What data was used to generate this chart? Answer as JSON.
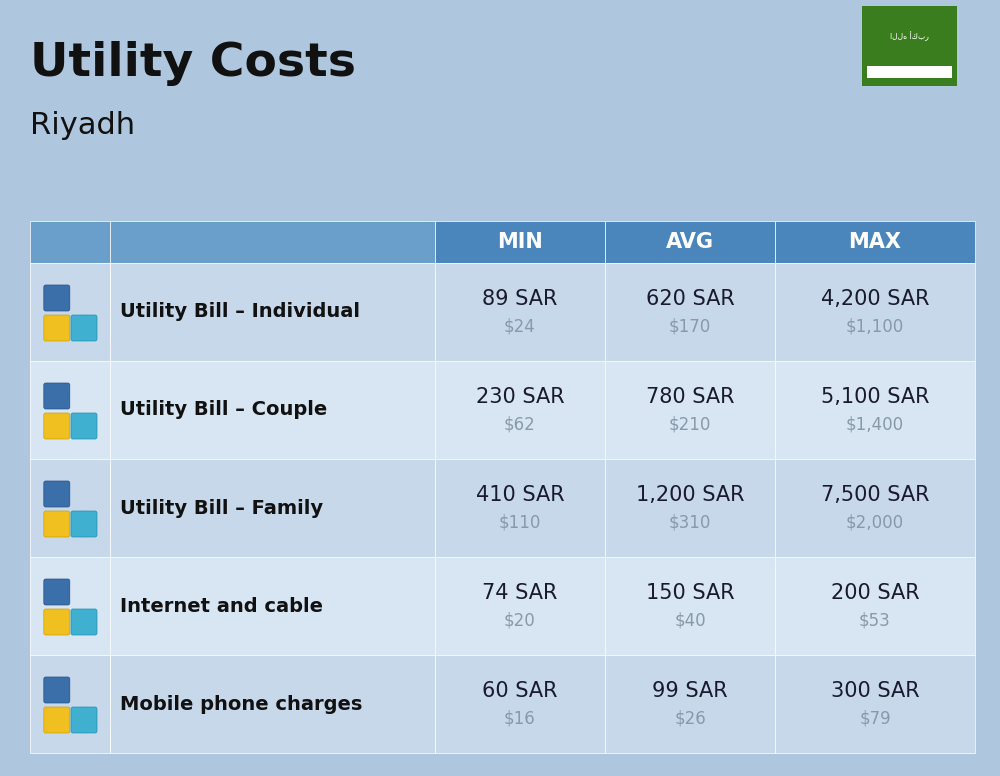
{
  "title": "Utility Costs",
  "subtitle": "Riyadh",
  "bg_color": "#aec6de",
  "header_bg_dark": "#4a86bc",
  "header_bg_light": "#6a9fcc",
  "row_colors": [
    "#c8d8eb",
    "#d8e6f3"
  ],
  "header_text_color": "#ffffff",
  "label_color": "#111111",
  "value_color": "#1a1a2e",
  "usd_color": "#8899aa",
  "flag_green": "#3a7d1e",
  "header_labels": [
    "MIN",
    "AVG",
    "MAX"
  ],
  "rows": [
    {
      "label": "Utility Bill – Individual",
      "min_sar": "89 SAR",
      "min_usd": "$24",
      "avg_sar": "620 SAR",
      "avg_usd": "$170",
      "max_sar": "4,200 SAR",
      "max_usd": "$1,100"
    },
    {
      "label": "Utility Bill – Couple",
      "min_sar": "230 SAR",
      "min_usd": "$62",
      "avg_sar": "780 SAR",
      "avg_usd": "$210",
      "max_sar": "5,100 SAR",
      "max_usd": "$1,400"
    },
    {
      "label": "Utility Bill – Family",
      "min_sar": "410 SAR",
      "min_usd": "$110",
      "avg_sar": "1,200 SAR",
      "avg_usd": "$310",
      "max_sar": "7,500 SAR",
      "max_usd": "$2,000"
    },
    {
      "label": "Internet and cable",
      "min_sar": "74 SAR",
      "min_usd": "$20",
      "avg_sar": "150 SAR",
      "avg_usd": "$40",
      "max_sar": "200 SAR",
      "max_usd": "$53"
    },
    {
      "label": "Mobile phone charges",
      "min_sar": "60 SAR",
      "min_usd": "$16",
      "avg_sar": "99 SAR",
      "avg_usd": "$26",
      "max_sar": "300 SAR",
      "max_usd": "$79"
    }
  ],
  "title_fontsize": 34,
  "subtitle_fontsize": 22,
  "header_fontsize": 15,
  "label_fontsize": 14,
  "value_fontsize": 15,
  "usd_fontsize": 12
}
